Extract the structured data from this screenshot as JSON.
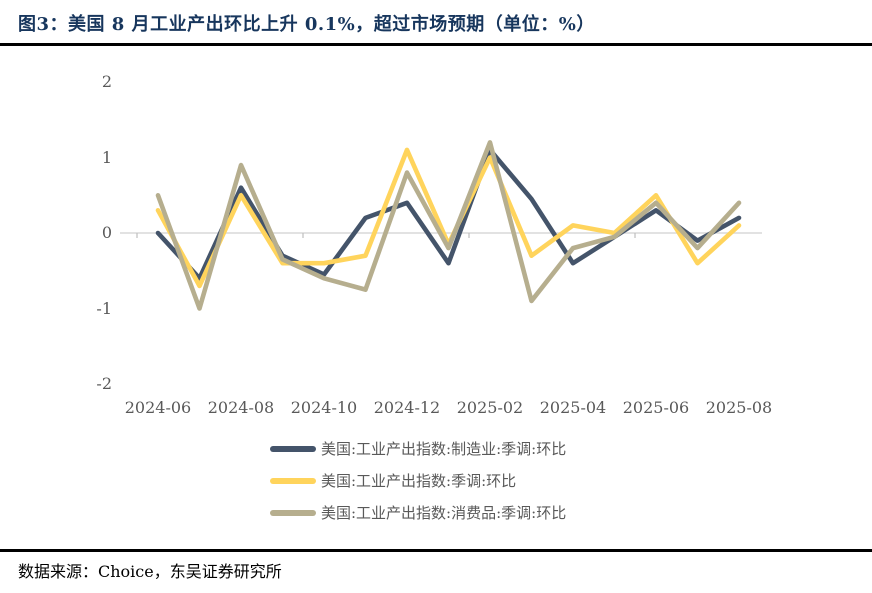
{
  "title": "图3：美国 8 月工业产出环比上升 0.1%，超过市场预期（单位：%）",
  "footer": {
    "source_label": "数据来源：Choice，东吴证券研究所"
  },
  "colors": {
    "title_text": "#17365D",
    "axis_text": "#595959",
    "legend_text": "#595959",
    "axis_line": "#D9D9D9",
    "tick_mark": "#BFBFBF",
    "separator": "#000000",
    "series_manufacturing": "#44546A",
    "series_overall": "#FFD45C",
    "series_consumer": "#B6AE8E"
  },
  "chart_data": {
    "type": "line",
    "title": "图3：美国 8 月工业产出环比上升 0.1%，超过市场预期（单位：%）",
    "unit": "%",
    "x": [
      "2024-06",
      "2024-07",
      "2024-08",
      "2024-09",
      "2024-10",
      "2024-11",
      "2024-12",
      "2025-01",
      "2025-02",
      "2025-03",
      "2025-04",
      "2025-05",
      "2025-06",
      "2025-07",
      "2025-08"
    ],
    "series": [
      {
        "name": "美国:工业产出指数:制造业:季调:环比",
        "color": "#44546A",
        "values": [
          0.0,
          -0.6,
          0.6,
          -0.3,
          -0.55,
          0.2,
          0.4,
          -0.4,
          1.1,
          0.45,
          -0.4,
          -0.05,
          0.3,
          -0.1,
          0.2
        ]
      },
      {
        "name": "美国:工业产出指数:季调:环比",
        "color": "#FFD45C",
        "values": [
          0.3,
          -0.7,
          0.5,
          -0.4,
          -0.4,
          -0.3,
          1.1,
          -0.15,
          1.0,
          -0.3,
          0.1,
          0.0,
          0.5,
          -0.4,
          0.1
        ]
      },
      {
        "name": "美国:工业产出指数:消费品:季调:环比",
        "color": "#B6AE8E",
        "values": [
          0.5,
          -1.0,
          0.9,
          -0.35,
          -0.6,
          -0.75,
          0.8,
          -0.2,
          1.2,
          -0.9,
          -0.2,
          -0.05,
          0.4,
          -0.2,
          0.4
        ]
      }
    ],
    "ylim": [
      -2,
      2
    ],
    "yticks": [
      2,
      1,
      0,
      -1,
      -2
    ],
    "xtick_labels": [
      "2024-06",
      "2024-08",
      "2024-10",
      "2024-12",
      "2025-02",
      "2025-04",
      "2025-06",
      "2025-08"
    ],
    "grid": false,
    "legend_position": "bottom"
  }
}
